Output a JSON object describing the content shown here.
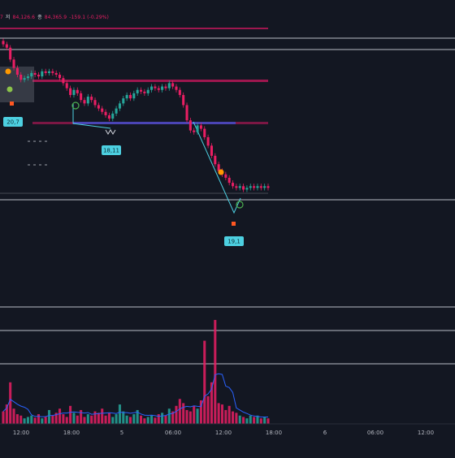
{
  "legend": {
    "prefix": "7",
    "open_label": "저",
    "open_value": "84,126.6",
    "close_label": "종",
    "close_value": "84,365.9",
    "change": "-159.1 (-0.29%)"
  },
  "colors": {
    "background": "#131722",
    "up": "#26a69a",
    "down": "#e91e63",
    "level_line": "#d8dbe2",
    "zone_pink": "#c2185b",
    "zone_blue": "#2962ff",
    "callout_bg": "#4dd0e1",
    "callout_text": "#0b2a33",
    "trendline": "#4dd0e1",
    "ma_line": "#2962ff",
    "axis_text": "#b2b5be"
  },
  "chart_data": {
    "type": "candlestick",
    "title": "",
    "xlabel": "",
    "ylabel": "",
    "x_ticks": [
      "12:00",
      "18:00",
      "5",
      "06:00",
      "12:00",
      "18:00",
      "6",
      "06:00",
      "12:00"
    ],
    "price_ylim": [
      0,
      100
    ],
    "series": [
      {
        "close": [
          93,
          91,
          84,
          79,
          75,
          72,
          73,
          74,
          76,
          75,
          74,
          77,
          76,
          77,
          76,
          75,
          73,
          70,
          67,
          63,
          66,
          64,
          60,
          58,
          62,
          60,
          57,
          55,
          53,
          51,
          49,
          52,
          55,
          58,
          61,
          63,
          61,
          64,
          66,
          65,
          64,
          66,
          68,
          67,
          66,
          68,
          67,
          70,
          68,
          66,
          63,
          57,
          48,
          42,
          41,
          45,
          43,
          38,
          33,
          27,
          22,
          18,
          16,
          14,
          11,
          9,
          8,
          9,
          7,
          8,
          9,
          8,
          9,
          8,
          9,
          8
        ]
      }
    ],
    "volume": {
      "values": [
        18,
        28,
        60,
        22,
        14,
        12,
        8,
        10,
        12,
        9,
        14,
        8,
        10,
        20,
        12,
        16,
        22,
        14,
        10,
        26,
        16,
        12,
        20,
        10,
        14,
        12,
        18,
        16,
        22,
        12,
        16,
        10,
        14,
        28,
        18,
        12,
        10,
        14,
        20,
        12,
        8,
        10,
        12,
        9,
        14,
        16,
        12,
        22,
        18,
        26,
        36,
        30,
        20,
        18,
        26,
        22,
        34,
        120,
        40,
        60,
        150,
        30,
        28,
        20,
        26,
        18,
        16,
        12,
        10,
        8,
        12,
        10,
        12,
        8,
        10,
        8
      ]
    },
    "levels": [
      {
        "label": "20,7"
      },
      {
        "label": "18,11"
      },
      {
        "label": "19,1"
      }
    ],
    "grid": false
  }
}
